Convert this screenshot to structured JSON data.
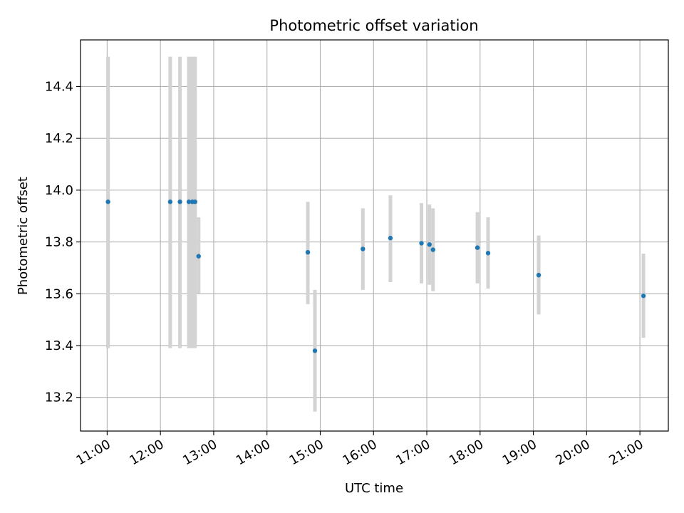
{
  "chart_data": {
    "type": "scatter",
    "title": "Photometric offset variation",
    "xlabel": "UTC time",
    "ylabel": "Photometric offset",
    "x_unit": "UTC time (HH:MM)",
    "xlim": [
      "10:30",
      "21:32"
    ],
    "ylim": [
      13.07,
      14.58
    ],
    "xticks": [
      "11:00",
      "12:00",
      "13:00",
      "14:00",
      "15:00",
      "16:00",
      "17:00",
      "18:00",
      "19:00",
      "20:00",
      "21:00"
    ],
    "yticks": [
      13.2,
      13.4,
      13.6,
      13.8,
      14.0,
      14.2,
      14.4
    ],
    "ytick_labels": [
      "13.2",
      "13.4",
      "13.6",
      "13.8",
      "14.0",
      "14.2",
      "14.4"
    ],
    "grid": true,
    "point_color": "#1f77b4",
    "errorbar_color": "#d3d3d3",
    "points": [
      {
        "x": "11:01",
        "y": 13.955,
        "err_low": 13.39,
        "err_high": 14.515
      },
      {
        "x": "12:11",
        "y": 13.955,
        "err_low": 13.39,
        "err_high": 14.515
      },
      {
        "x": "12:22",
        "y": 13.955,
        "err_low": 13.39,
        "err_high": 14.515
      },
      {
        "x": "12:32",
        "y": 13.955,
        "err_low": 13.39,
        "err_high": 14.515
      },
      {
        "x": "12:36",
        "y": 13.955,
        "err_low": 13.39,
        "err_high": 14.515
      },
      {
        "x": "12:39",
        "y": 13.955,
        "err_low": 13.39,
        "err_high": 14.515
      },
      {
        "x": "12:43",
        "y": 13.745,
        "err_low": 13.6,
        "err_high": 13.895
      },
      {
        "x": "14:46",
        "y": 13.76,
        "err_low": 13.56,
        "err_high": 13.955
      },
      {
        "x": "14:54",
        "y": 13.38,
        "err_low": 13.145,
        "err_high": 13.615
      },
      {
        "x": "15:48",
        "y": 13.773,
        "err_low": 13.615,
        "err_high": 13.93
      },
      {
        "x": "16:19",
        "y": 13.815,
        "err_low": 13.645,
        "err_high": 13.98
      },
      {
        "x": "16:54",
        "y": 13.795,
        "err_low": 13.64,
        "err_high": 13.95
      },
      {
        "x": "17:03",
        "y": 13.79,
        "err_low": 13.635,
        "err_high": 13.945
      },
      {
        "x": "17:07",
        "y": 13.77,
        "err_low": 13.61,
        "err_high": 13.93
      },
      {
        "x": "17:57",
        "y": 13.778,
        "err_low": 13.64,
        "err_high": 13.915
      },
      {
        "x": "18:09",
        "y": 13.757,
        "err_low": 13.62,
        "err_high": 13.895
      },
      {
        "x": "19:06",
        "y": 13.672,
        "err_low": 13.52,
        "err_high": 13.825
      },
      {
        "x": "21:04",
        "y": 13.592,
        "err_low": 13.43,
        "err_high": 13.755
      }
    ]
  }
}
